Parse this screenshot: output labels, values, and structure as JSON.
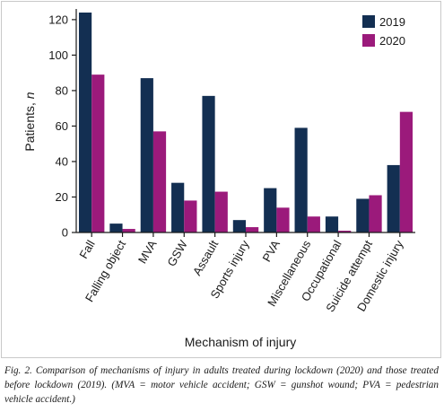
{
  "chart_data": {
    "type": "bar",
    "categories": [
      "Fall",
      "Falling object",
      "MVA",
      "GSW",
      "Assault",
      "Sports injury",
      "PVA",
      "Miscellaneous",
      "Occupational",
      "Suicide attempt",
      "Domestic injury"
    ],
    "series": [
      {
        "name": "2019",
        "color": "#132f52",
        "values": [
          124,
          5,
          87,
          28,
          77,
          7,
          25,
          59,
          9,
          19,
          38
        ]
      },
      {
        "name": "2020",
        "color": "#9b1a7b",
        "values": [
          89,
          2,
          57,
          18,
          23,
          3,
          14,
          9,
          1,
          21,
          68
        ]
      }
    ],
    "title": "",
    "xlabel": "Mechanism of injury",
    "ylabel_main": "Patients, ",
    "ylabel_italic": "n",
    "ylim": [
      0,
      125
    ],
    "yticks": [
      0,
      20,
      40,
      60,
      80,
      100,
      120
    ],
    "grid": false,
    "legend_position": "top-right"
  },
  "caption": "Fig. 2. Comparison of mechanisms of injury in adults treated during lockdown (2020) and those treated before lockdown (2019). (MVA = motor vehicle accident; GSW = gunshot wound; PVA = pedestrian vehicle accident.)"
}
